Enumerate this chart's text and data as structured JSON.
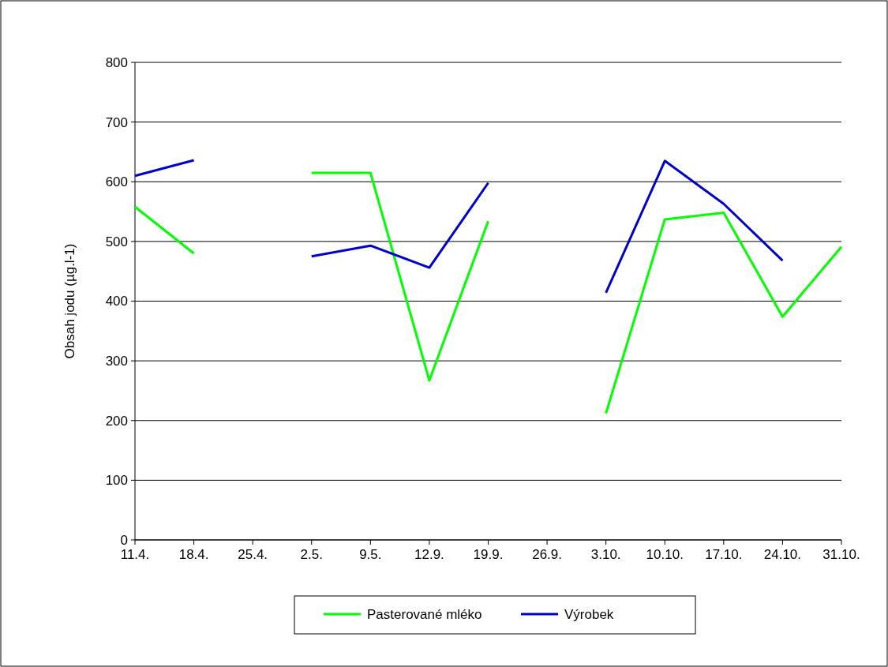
{
  "chart_data": {
    "type": "line",
    "ylabel": "Obsah jodu (µg.l-1)",
    "categories": [
      "11.4.",
      "18.4.",
      "25.4.",
      "2.5.",
      "9.5.",
      "12.9.",
      "19.9.",
      "26.9.",
      "3.10.",
      "10.10.",
      "17.10.",
      "24.10.",
      "31.10."
    ],
    "series": [
      {
        "name": "Pasterované mléko",
        "color": "#00ff00",
        "values": [
          558,
          480,
          null,
          615,
          615,
          267,
          534,
          null,
          212,
          537,
          548,
          374,
          491
        ]
      },
      {
        "name": "Výrobek",
        "color": "#0000cc",
        "values": [
          610,
          636,
          null,
          475,
          493,
          456,
          598,
          null,
          414,
          635,
          563,
          468,
          null
        ]
      }
    ],
    "ylim": [
      0,
      800
    ],
    "yticks": [
      0,
      100,
      200,
      300,
      400,
      500,
      600,
      700,
      800
    ],
    "grid": "y",
    "legend": "bottom",
    "marker": "none",
    "line_style": "solid"
  }
}
